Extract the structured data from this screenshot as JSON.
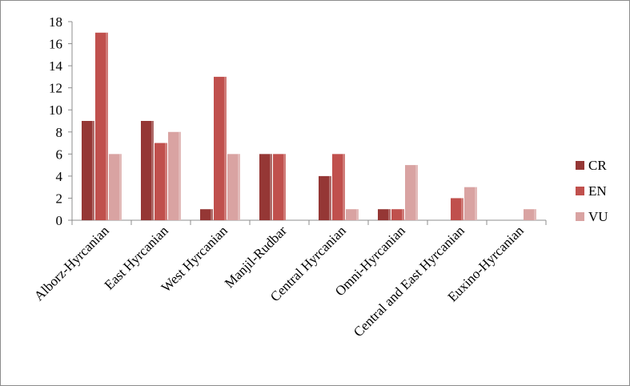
{
  "chart_data": {
    "type": "bar",
    "title": "",
    "xlabel": "",
    "ylabel": "",
    "ylim": [
      0,
      18
    ],
    "yticks": [
      0,
      2,
      4,
      6,
      8,
      10,
      12,
      14,
      16,
      18
    ],
    "categories": [
      "Alborz-Hyrcanian",
      "East Hyrcanian",
      "West Hyrcanian",
      "Manjil-Rudbar",
      "Central Hyrcanian",
      "Omni-Hyrcanian",
      "Central and East Hyrcanian",
      "Euxino-Hyrcanian"
    ],
    "series": [
      {
        "name": "CR",
        "color": "#953735",
        "values": [
          9,
          9,
          1,
          6,
          4,
          1,
          0,
          0
        ]
      },
      {
        "name": "EN",
        "color": "#c0504d",
        "values": [
          17,
          7,
          13,
          6,
          6,
          1,
          2,
          0
        ]
      },
      {
        "name": "VU",
        "color": "#d9a3a2",
        "values": [
          6,
          8,
          6,
          0,
          1,
          5,
          3,
          1
        ]
      }
    ],
    "grid": false,
    "legend": "right"
  }
}
